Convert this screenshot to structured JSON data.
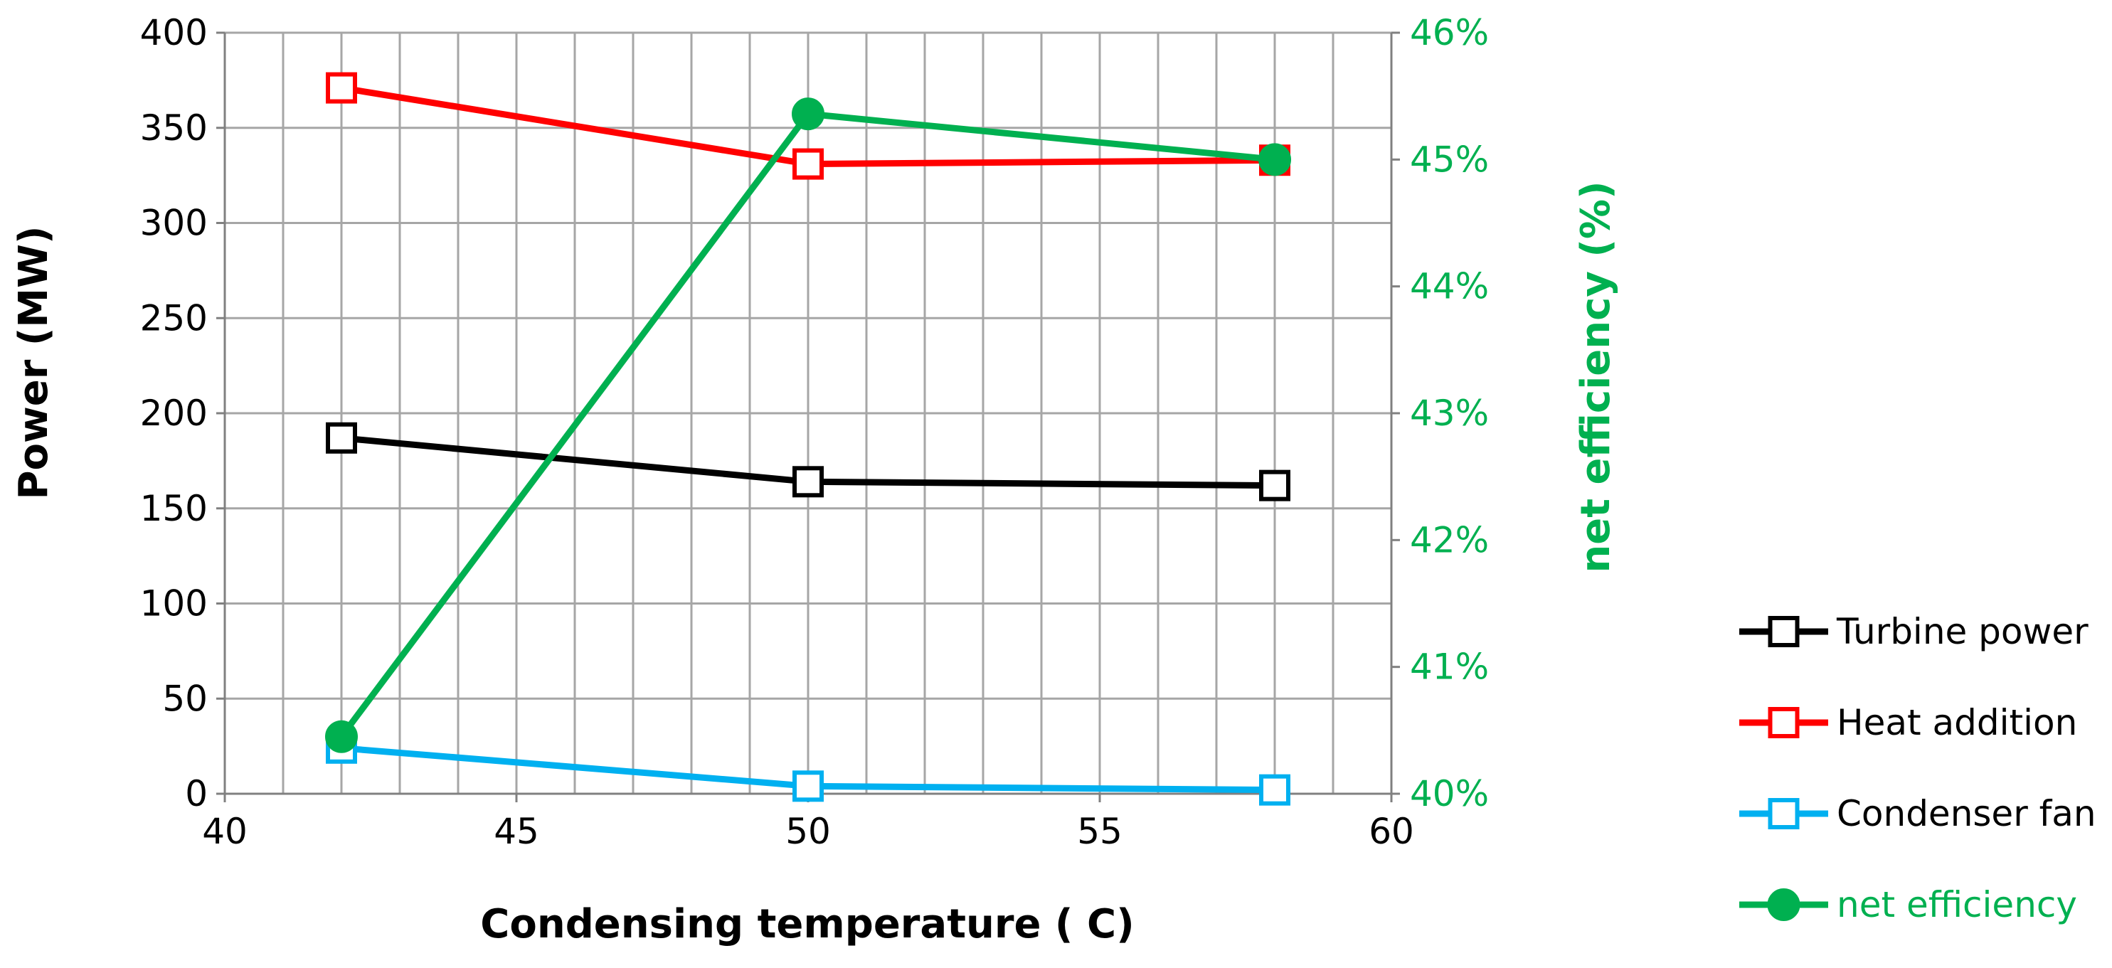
{
  "chart_data": {
    "type": "line",
    "title": "",
    "xlabel": "Condensing temperature ( C)",
    "ylabel": "Power (MW)",
    "y2label": "net efficiency (%)",
    "xlim": [
      40,
      60
    ],
    "ylim": [
      0,
      400
    ],
    "y2lim": [
      0.4,
      0.46
    ],
    "x_ticks": [
      40,
      45,
      50,
      55,
      60
    ],
    "x_tick_labels": [
      "40",
      "45",
      "50",
      "55",
      "60"
    ],
    "y_ticks": [
      0,
      50,
      100,
      150,
      200,
      250,
      300,
      350,
      400
    ],
    "y_tick_labels": [
      "0",
      "50",
      "100",
      "150",
      "200",
      "250",
      "300",
      "350",
      "400"
    ],
    "y2_ticks": [
      0.4,
      0.41,
      0.42,
      0.43,
      0.44,
      0.45,
      0.46
    ],
    "y2_tick_labels": [
      "40%",
      "41%",
      "42%",
      "43%",
      "44%",
      "45%",
      "46%"
    ],
    "x_minor_step": 1,
    "grid": true,
    "legend_position": "right",
    "x": [
      42,
      50,
      58
    ],
    "series": [
      {
        "name": "Turbine power",
        "axis": "left",
        "marker": "square",
        "color": "#000000",
        "values": [
          187,
          164,
          162
        ]
      },
      {
        "name": "Heat addition",
        "axis": "left",
        "marker": "square",
        "color": "#ff0000",
        "values": [
          371,
          331,
          333
        ]
      },
      {
        "name": "Condenser fan",
        "axis": "left",
        "marker": "square",
        "color": "#00b0f0",
        "values": [
          24,
          4,
          2
        ]
      },
      {
        "name": "net efficiency",
        "axis": "right",
        "marker": "circle",
        "color": "#00b050",
        "values": [
          0.4045,
          0.4536,
          0.45
        ]
      }
    ],
    "colors": {
      "grid": "#a6a6a6",
      "axis": "#808080",
      "text": "#000000",
      "secondary_axis_text": "#00b050"
    }
  }
}
